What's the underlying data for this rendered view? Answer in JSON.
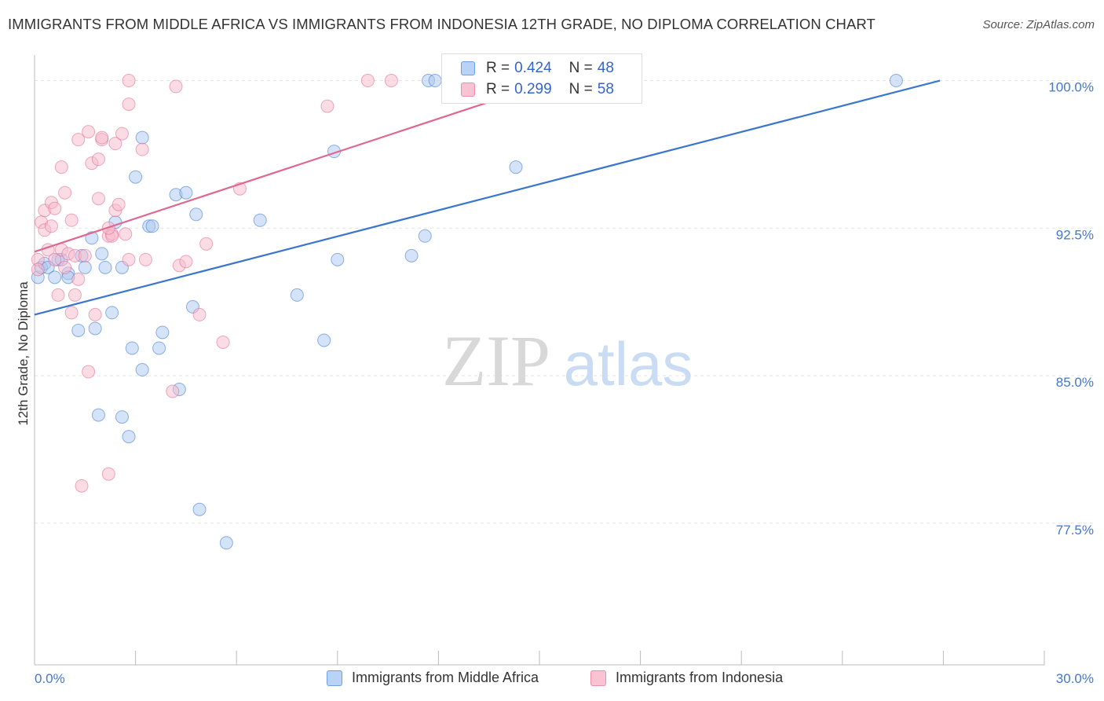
{
  "title": "IMMIGRANTS FROM MIDDLE AFRICA VS IMMIGRANTS FROM INDONESIA 12TH GRADE, NO DIPLOMA CORRELATION CHART",
  "source": "Source: ZipAtlas.com",
  "watermark": {
    "zip": "ZIP",
    "atlas": "atlas"
  },
  "colors": {
    "blue": "#3a76cf",
    "blue_fill": "#a9c8f0",
    "pink": "#e0688f",
    "pink_fill": "#f7b9cc",
    "axis_text": "#4477cc",
    "grid": "#e4e4e4"
  },
  "legend_top": {
    "rows": [
      {
        "r_label": "R =",
        "r_value": "0.424",
        "n_label": "N =",
        "n_value": "48"
      },
      {
        "r_label": "R =",
        "r_value": "0.299",
        "n_label": "N =",
        "n_value": "58"
      }
    ]
  },
  "legend_bottom": [
    {
      "label": "Immigrants from Middle Africa"
    },
    {
      "label": "Immigrants from Indonesia"
    }
  ],
  "chart_data": {
    "type": "scatter",
    "title": "IMMIGRANTS FROM MIDDLE AFRICA VS IMMIGRANTS FROM INDONESIA 12TH GRADE, NO DIPLOMA CORRELATION CHART",
    "xlabel": "",
    "ylabel": "12th Grade, No Diploma",
    "xlim": [
      0,
      30
    ],
    "ylim": [
      70.3,
      101.3
    ],
    "x_tick_labels": [
      "0.0%",
      "30.0%"
    ],
    "y_ticks": [
      100.0,
      92.5,
      85.0,
      77.5
    ],
    "y_tick_labels": [
      "100.0%",
      "92.5%",
      "85.0%",
      "77.5%"
    ],
    "grid": true,
    "series": [
      {
        "name": "Immigrants from Middle Africa",
        "R": 0.424,
        "N": 48,
        "trend": {
          "x": [
            0.0,
            26.9
          ],
          "y": [
            88.1,
            100.0
          ]
        },
        "points": [
          [
            0.1,
            90.0
          ],
          [
            0.2,
            90.5
          ],
          [
            0.3,
            90.7
          ],
          [
            0.4,
            90.5
          ],
          [
            0.6,
            90.0
          ],
          [
            0.7,
            90.9
          ],
          [
            0.8,
            90.9
          ],
          [
            1.0,
            90.2
          ],
          [
            1.0,
            90.0
          ],
          [
            1.3,
            87.3
          ],
          [
            1.4,
            91.1
          ],
          [
            1.5,
            90.5
          ],
          [
            1.7,
            92.0
          ],
          [
            1.8,
            87.4
          ],
          [
            1.9,
            83.0
          ],
          [
            2.0,
            91.2
          ],
          [
            2.1,
            90.5
          ],
          [
            2.3,
            88.2
          ],
          [
            2.4,
            92.8
          ],
          [
            2.6,
            90.5
          ],
          [
            2.6,
            82.9
          ],
          [
            2.8,
            81.9
          ],
          [
            2.9,
            86.4
          ],
          [
            3.2,
            85.3
          ],
          [
            3.2,
            97.1
          ],
          [
            3.4,
            92.6
          ],
          [
            3.5,
            92.6
          ],
          [
            3.7,
            86.4
          ],
          [
            3.8,
            87.2
          ],
          [
            4.2,
            94.2
          ],
          [
            4.3,
            84.3
          ],
          [
            4.5,
            94.3
          ],
          [
            4.7,
            88.5
          ],
          [
            4.8,
            93.2
          ],
          [
            4.9,
            78.2
          ],
          [
            5.7,
            76.5
          ],
          [
            6.7,
            92.9
          ],
          [
            7.8,
            89.1
          ],
          [
            8.6,
            86.8
          ],
          [
            8.9,
            96.4
          ],
          [
            9.0,
            90.9
          ],
          [
            11.2,
            91.1
          ],
          [
            11.6,
            92.1
          ],
          [
            11.7,
            100.0
          ],
          [
            11.9,
            100.0
          ],
          [
            14.3,
            95.6
          ],
          [
            25.6,
            100.0
          ],
          [
            3.0,
            95.1
          ]
        ]
      },
      {
        "name": "Immigrants from Indonesia",
        "R": 0.299,
        "N": 58,
        "trend": {
          "x": [
            0.0,
            14.9
          ],
          "y": [
            91.3,
            99.7
          ]
        },
        "points": [
          [
            0.1,
            90.9
          ],
          [
            0.1,
            90.4
          ],
          [
            0.2,
            92.8
          ],
          [
            0.3,
            92.4
          ],
          [
            0.3,
            93.4
          ],
          [
            0.4,
            91.4
          ],
          [
            0.5,
            92.6
          ],
          [
            0.5,
            93.8
          ],
          [
            0.6,
            93.5
          ],
          [
            0.6,
            90.9
          ],
          [
            0.7,
            89.1
          ],
          [
            0.8,
            95.6
          ],
          [
            0.8,
            91.4
          ],
          [
            0.9,
            94.3
          ],
          [
            0.9,
            90.5
          ],
          [
            1.0,
            91.2
          ],
          [
            1.1,
            88.2
          ],
          [
            1.1,
            92.9
          ],
          [
            1.2,
            89.1
          ],
          [
            1.2,
            91.1
          ],
          [
            1.3,
            89.9
          ],
          [
            1.3,
            97.0
          ],
          [
            1.4,
            79.4
          ],
          [
            1.5,
            91.1
          ],
          [
            1.6,
            97.4
          ],
          [
            1.6,
            85.2
          ],
          [
            1.7,
            95.8
          ],
          [
            1.8,
            88.1
          ],
          [
            1.9,
            96.0
          ],
          [
            1.9,
            94.0
          ],
          [
            2.0,
            97.0
          ],
          [
            2.0,
            97.1
          ],
          [
            2.2,
            92.1
          ],
          [
            2.2,
            80.0
          ],
          [
            2.3,
            92.2
          ],
          [
            2.4,
            96.8
          ],
          [
            2.4,
            93.4
          ],
          [
            2.5,
            93.7
          ],
          [
            2.6,
            97.3
          ],
          [
            2.7,
            92.2
          ],
          [
            2.8,
            90.9
          ],
          [
            2.8,
            100.0
          ],
          [
            2.8,
            98.8
          ],
          [
            3.2,
            96.5
          ],
          [
            4.1,
            84.2
          ],
          [
            4.2,
            99.7
          ],
          [
            4.3,
            90.6
          ],
          [
            4.5,
            90.8
          ],
          [
            4.9,
            88.1
          ],
          [
            5.1,
            91.7
          ],
          [
            5.6,
            86.7
          ],
          [
            6.1,
            94.5
          ],
          [
            8.7,
            98.7
          ],
          [
            9.9,
            100.0
          ],
          [
            10.6,
            100.0
          ],
          [
            2.3,
            92.1
          ],
          [
            3.3,
            90.9
          ],
          [
            2.2,
            92.5
          ]
        ]
      }
    ]
  }
}
